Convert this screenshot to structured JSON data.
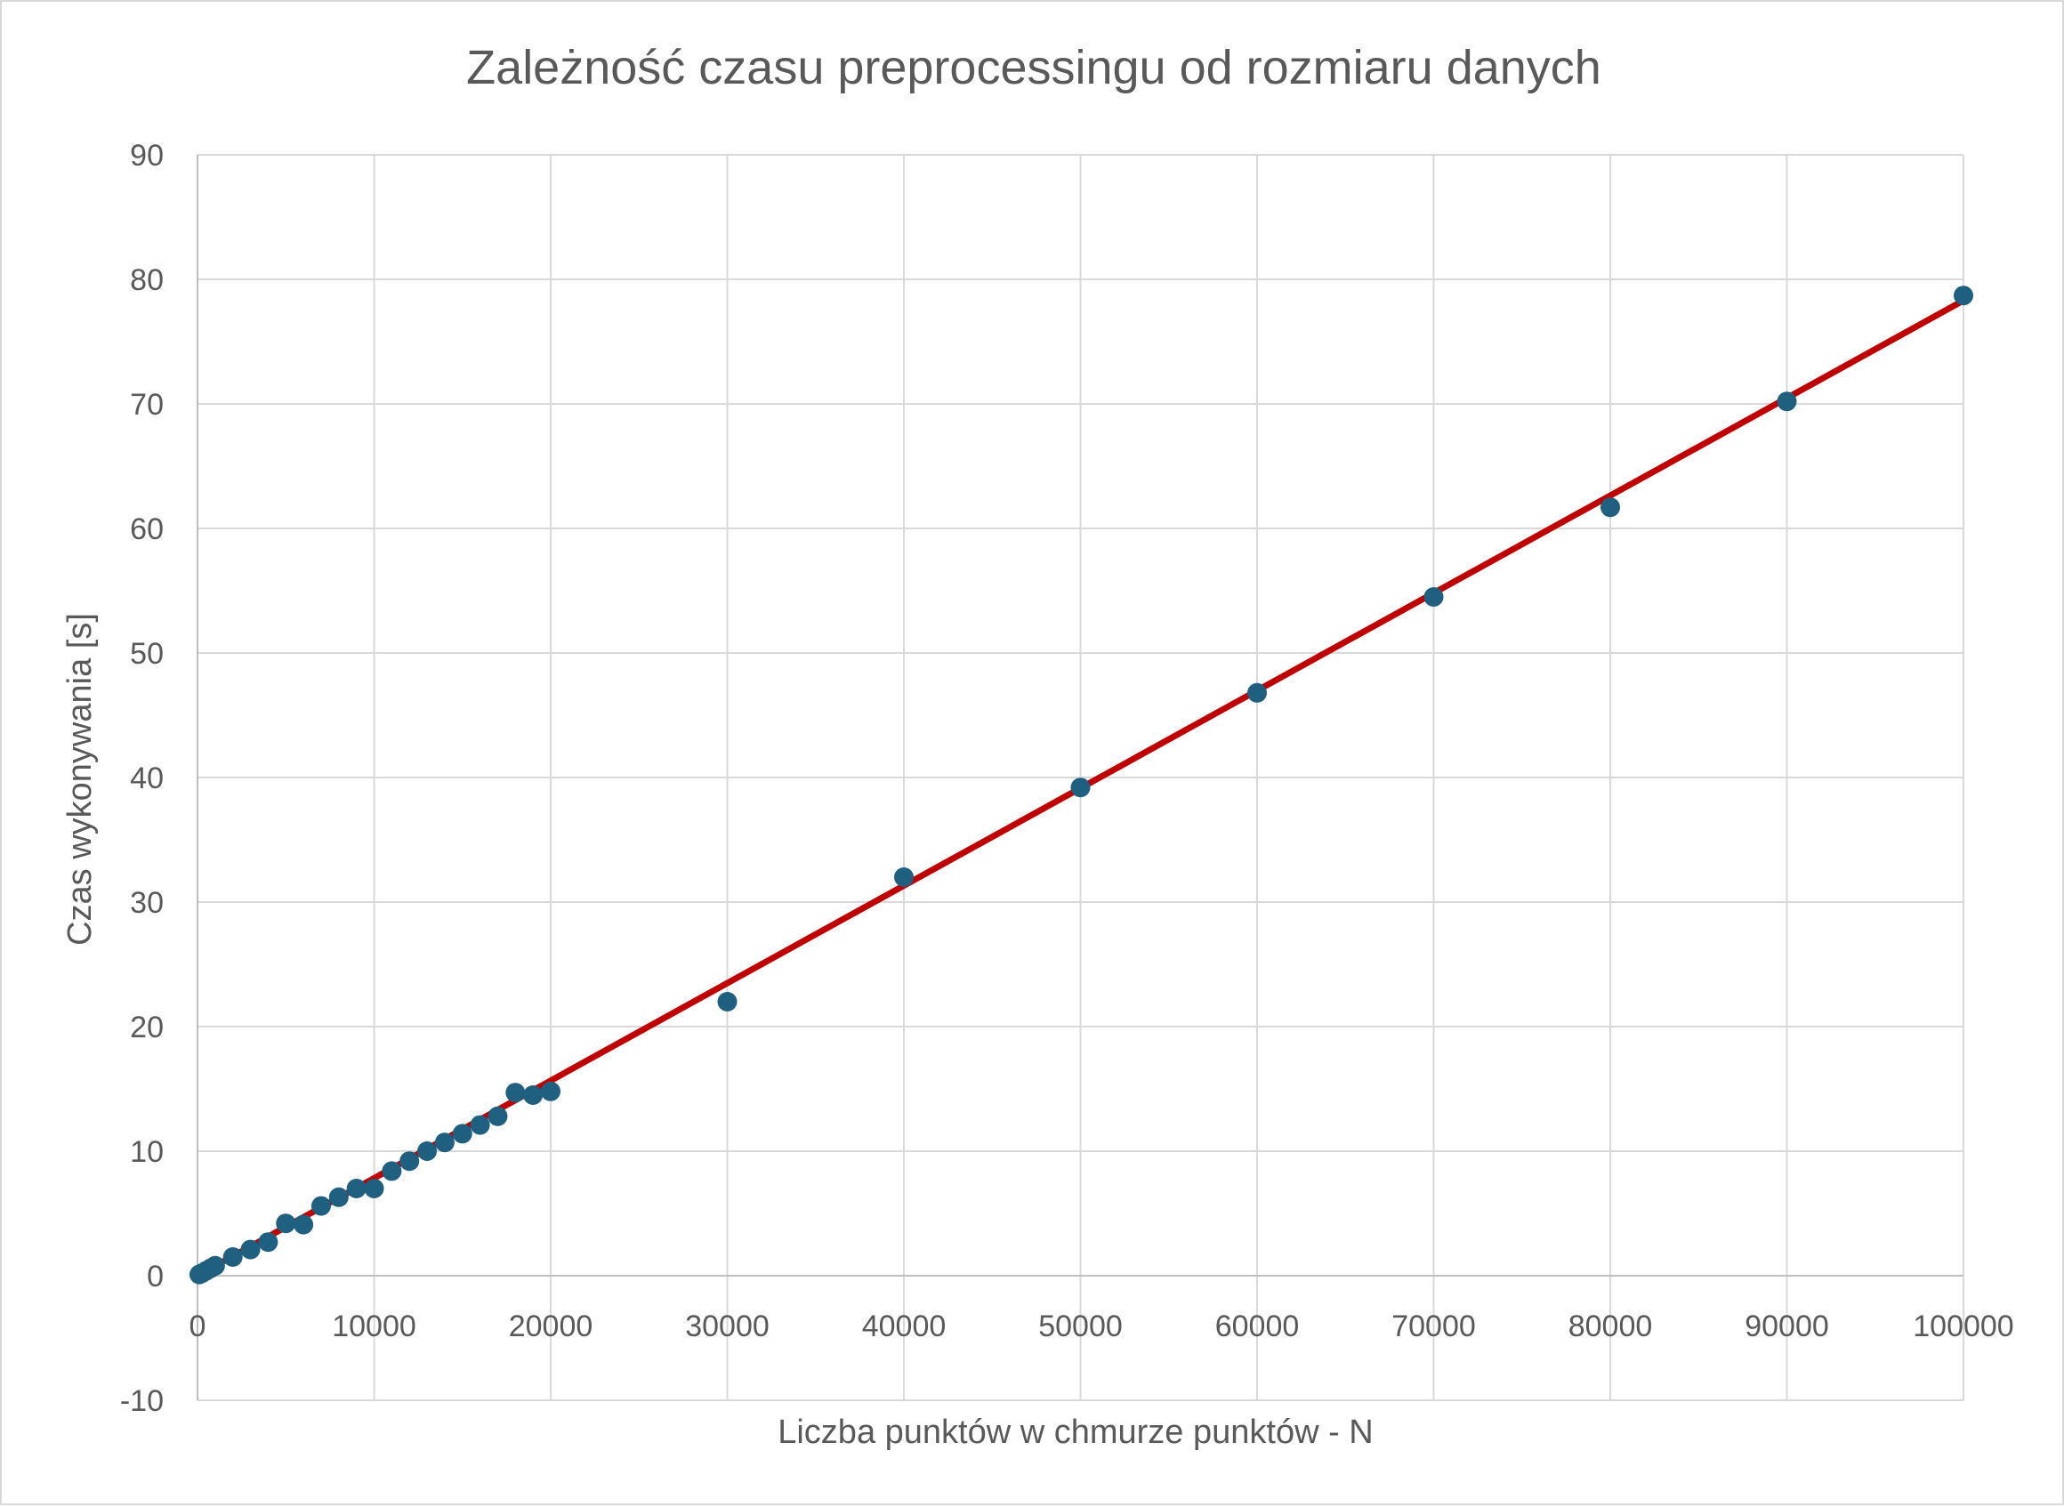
{
  "chart_data": {
    "type": "scatter",
    "title": "Zależność czasu preprocessingu od rozmiaru danych",
    "xlabel": "Liczba punktów w chmurze punktów - N",
    "ylabel": "Czas wykonywania [s]",
    "xlim": [
      0,
      100000
    ],
    "ylim": [
      -10,
      90
    ],
    "x_ticks": [
      0,
      10000,
      20000,
      30000,
      40000,
      50000,
      60000,
      70000,
      80000,
      90000,
      100000
    ],
    "y_ticks": [
      -10,
      0,
      10,
      20,
      30,
      40,
      50,
      60,
      70,
      80,
      90
    ],
    "grid": true,
    "legend": "none",
    "series": [
      {
        "kind": "points",
        "color": "#1f5f80",
        "x": [
          100,
          250,
          500,
          750,
          1000,
          2000,
          3000,
          4000,
          5000,
          6000,
          7000,
          8000,
          9000,
          10000,
          11000,
          12000,
          13000,
          14000,
          15000,
          16000,
          17000,
          18000,
          19000,
          20000,
          30000,
          40000,
          50000,
          60000,
          70000,
          80000,
          90000,
          100000
        ],
        "y": [
          0.1,
          0.2,
          0.4,
          0.6,
          0.8,
          1.5,
          2.1,
          2.7,
          4.2,
          4.1,
          5.6,
          6.3,
          7.0,
          7.0,
          8.4,
          9.2,
          10.0,
          10.7,
          11.4,
          12.1,
          12.8,
          14.7,
          14.5,
          14.8,
          22.0,
          32.0,
          39.2,
          46.8,
          54.5,
          61.7,
          70.2,
          78.7
        ]
      },
      {
        "kind": "trendline",
        "color": "#c00000",
        "x": [
          0,
          100000
        ],
        "y": [
          0,
          78.3
        ]
      }
    ]
  }
}
